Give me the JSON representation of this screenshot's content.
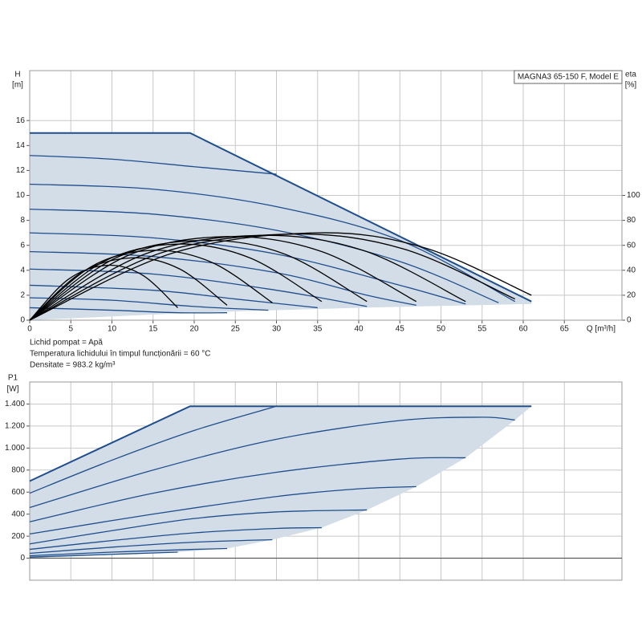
{
  "chart_data": [
    {
      "type": "line",
      "title": "MAGNA3 65-150 F, Model E",
      "ylabel": "H",
      "yunit": "[m]",
      "y2label": "eta",
      "y2unit": "[%]",
      "xlabel": "Q [m³/h]",
      "notes": [
        "Lichid pompat = Apă",
        "Temperatura lichidului în timpul funcționării = 60 °C",
        "Densitate = 983.2 kg/m³"
      ],
      "xlim": [
        0,
        72
      ],
      "xticks": [
        0,
        5,
        10,
        15,
        20,
        25,
        30,
        35,
        40,
        45,
        50,
        55,
        60,
        65
      ],
      "ylim": [
        0,
        20
      ],
      "yticks": [
        0,
        2,
        4,
        6,
        8,
        10,
        12,
        14,
        16
      ],
      "y2lim": [
        0,
        200
      ],
      "y2ticks": [
        0,
        20,
        40,
        60,
        80,
        100
      ],
      "grid": true,
      "area": {
        "color": "#d3dde7",
        "x": [
          0,
          19.5,
          61,
          61,
          40,
          20,
          0
        ],
        "values": [
          15,
          15,
          1.5,
          1.3,
          1,
          0.6,
          0
        ]
      },
      "series": [
        {
          "color": "#1f4e8c",
          "width": 2,
          "smooth": false,
          "x": [
            0,
            19.5,
            61
          ],
          "values": [
            15,
            15,
            1.5
          ]
        },
        {
          "color": "#1f4e8c",
          "x": [
            0,
            10,
            20,
            30
          ],
          "values": [
            13.2,
            12.9,
            12.3,
            11.7
          ]
        },
        {
          "color": "#1f4e8c",
          "x": [
            0,
            15,
            30,
            45,
            59
          ],
          "values": [
            10.9,
            10.5,
            9.1,
            6.4,
            1.5
          ]
        },
        {
          "color": "#1f4e8c",
          "x": [
            0,
            15,
            30,
            45,
            57
          ],
          "values": [
            8.9,
            8.5,
            7.2,
            4.7,
            1.4
          ]
        },
        {
          "color": "#1f4e8c",
          "x": [
            0,
            15,
            30,
            45,
            53
          ],
          "values": [
            7,
            6.6,
            5.3,
            2.8,
            1.3
          ]
        },
        {
          "color": "#1f4e8c",
          "x": [
            0,
            15,
            30,
            41,
            47
          ],
          "values": [
            5.5,
            5.1,
            3.8,
            2,
            1.2
          ]
        },
        {
          "color": "#1f4e8c",
          "x": [
            0,
            15,
            30,
            41
          ],
          "values": [
            4.1,
            3.7,
            2.4,
            1.1
          ]
        },
        {
          "color": "#1f4e8c",
          "x": [
            0,
            15,
            25,
            35
          ],
          "values": [
            2.8,
            2.4,
            1.7,
            1
          ]
        },
        {
          "color": "#1f4e8c",
          "x": [
            0,
            10,
            20,
            29
          ],
          "values": [
            1.8,
            1.6,
            1.1,
            0.8
          ]
        },
        {
          "color": "#1f4e8c",
          "x": [
            0,
            10,
            18,
            24
          ],
          "values": [
            1,
            0.8,
            0.6,
            0.6
          ]
        },
        {
          "color": "#000000",
          "axis": "y2",
          "x": [
            0,
            4.75,
            9.5,
            13.75,
            18
          ],
          "values": [
            0,
            33,
            44,
            36,
            10
          ]
        },
        {
          "color": "#000000",
          "axis": "y2",
          "x": [
            0,
            6.25,
            12.5,
            18.25,
            24
          ],
          "values": [
            0,
            38,
            50,
            41,
            12
          ]
        },
        {
          "color": "#000000",
          "axis": "y2",
          "x": [
            0,
            7.5,
            15,
            22.25,
            29.5
          ],
          "values": [
            0,
            43,
            56,
            46,
            14
          ]
        },
        {
          "color": "#000000",
          "axis": "y2",
          "x": [
            0,
            9,
            18,
            26.75,
            35.5
          ],
          "values": [
            0,
            47,
            61,
            50,
            15
          ]
        },
        {
          "color": "#000000",
          "axis": "y2",
          "x": [
            0,
            10.5,
            21,
            31,
            41
          ],
          "values": [
            0,
            50,
            64,
            53,
            15
          ]
        },
        {
          "color": "#000000",
          "axis": "y2",
          "x": [
            0,
            12,
            24,
            35.5,
            47
          ],
          "values": [
            0,
            52,
            67,
            55,
            15
          ]
        },
        {
          "color": "#000000",
          "axis": "y2",
          "x": [
            0,
            14,
            28,
            40.5,
            53
          ],
          "values": [
            0,
            53,
            68,
            56,
            15
          ]
        },
        {
          "color": "#000000",
          "axis": "y2",
          "x": [
            0,
            16,
            32,
            45.5,
            59
          ],
          "values": [
            0,
            54,
            69,
            57,
            17
          ]
        },
        {
          "color": "#000000",
          "axis": "y2",
          "x": [
            0,
            17.5,
            35,
            48,
            61
          ],
          "values": [
            0,
            54,
            70,
            58,
            20
          ]
        }
      ]
    },
    {
      "type": "line",
      "ylabel": "P1",
      "yunit": "[W]",
      "xlim": [
        0,
        72
      ],
      "ylim": [
        -200,
        1600
      ],
      "yticks": [
        0,
        200,
        400,
        600,
        800,
        {
          "value": 1000,
          "label": "1.000"
        },
        {
          "value": 1200,
          "label": "1.200"
        },
        {
          "value": 1400,
          "label": "1.400"
        }
      ],
      "grid": true,
      "area": {
        "color": "#d3dde7",
        "x": [
          0,
          19.5,
          61,
          59,
          53,
          47,
          41,
          35.5,
          29.5,
          24,
          18,
          0
        ],
        "values": [
          700,
          1380,
          1380,
          1255,
          912,
          650,
          438,
          277,
          168,
          88,
          55,
          0
        ]
      },
      "series": [
        {
          "color": "#1f4e8c",
          "width": 2,
          "smooth": false,
          "x": [
            0,
            19.5,
            61
          ],
          "values": [
            700,
            1380,
            1380
          ]
        },
        {
          "color": "#1f4e8c",
          "x": [
            0,
            10,
            20,
            30
          ],
          "values": [
            590,
            890,
            1160,
            1380
          ]
        },
        {
          "color": "#1f4e8c",
          "x": [
            0,
            15,
            30,
            45,
            55,
            59
          ],
          "values": [
            460,
            800,
            1080,
            1250,
            1280,
            1255
          ]
        },
        {
          "color": "#1f4e8c",
          "x": [
            0,
            15,
            30,
            45,
            53
          ],
          "values": [
            330,
            590,
            780,
            900,
            912
          ]
        },
        {
          "color": "#1f4e8c",
          "x": [
            0,
            15,
            30,
            40,
            47
          ],
          "values": [
            220,
            400,
            560,
            630,
            650
          ]
        },
        {
          "color": "#1f4e8c",
          "x": [
            0,
            10,
            20,
            30,
            41
          ],
          "values": [
            130,
            250,
            360,
            420,
            438
          ]
        },
        {
          "color": "#1f4e8c",
          "x": [
            0,
            10,
            20,
            30,
            35.5
          ],
          "values": [
            80,
            160,
            230,
            270,
            277
          ]
        },
        {
          "color": "#1f4e8c",
          "x": [
            0,
            10,
            20,
            29.5
          ],
          "values": [
            44,
            100,
            145,
            168
          ]
        },
        {
          "color": "#1f4e8c",
          "x": [
            0,
            10,
            20,
            24
          ],
          "values": [
            22,
            55,
            80,
            88
          ]
        },
        {
          "color": "#1f4e8c",
          "x": [
            0,
            10,
            18
          ],
          "values": [
            10,
            35,
            55
          ]
        }
      ]
    }
  ]
}
